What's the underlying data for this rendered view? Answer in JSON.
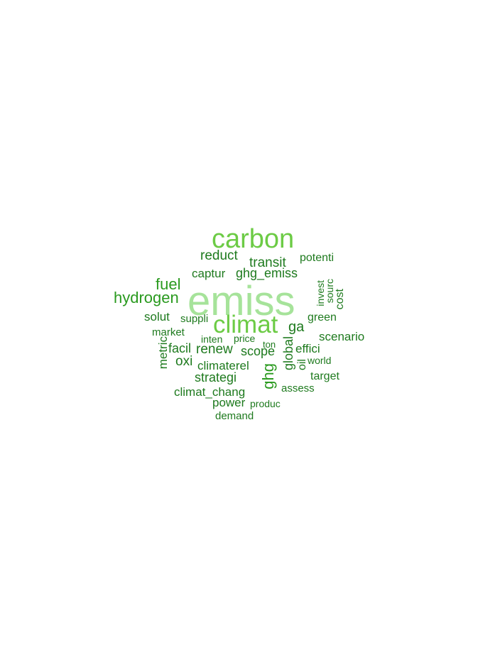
{
  "palette": {
    "lightest": "#a6e39a",
    "light": "#6ccb45",
    "medium": "#2a9a1f",
    "dark": "#1e7a1e"
  },
  "words": [
    {
      "text": "emiss",
      "tone": "lightest"
    },
    {
      "text": "carbon",
      "tone": "light"
    },
    {
      "text": "climat",
      "tone": "light"
    },
    {
      "text": "hydrogen",
      "tone": "medium"
    },
    {
      "text": "fuel",
      "tone": "medium"
    },
    {
      "text": "ghg",
      "tone": "medium"
    },
    {
      "text": "reduct",
      "tone": "dark"
    },
    {
      "text": "transit",
      "tone": "dark"
    },
    {
      "text": "ghg_emiss",
      "tone": "dark"
    },
    {
      "text": "captur",
      "tone": "dark"
    },
    {
      "text": "potenti",
      "tone": "dark"
    },
    {
      "text": "invest",
      "tone": "dark"
    },
    {
      "text": "sourc",
      "tone": "dark"
    },
    {
      "text": "cost",
      "tone": "dark"
    },
    {
      "text": "solut",
      "tone": "dark"
    },
    {
      "text": "suppli",
      "tone": "dark"
    },
    {
      "text": "green",
      "tone": "dark"
    },
    {
      "text": "ga",
      "tone": "dark"
    },
    {
      "text": "market",
      "tone": "dark"
    },
    {
      "text": "inten",
      "tone": "dark"
    },
    {
      "text": "price",
      "tone": "dark"
    },
    {
      "text": "ton",
      "tone": "dark"
    },
    {
      "text": "scenario",
      "tone": "dark"
    },
    {
      "text": "metric",
      "tone": "dark"
    },
    {
      "text": "facil",
      "tone": "dark"
    },
    {
      "text": "renew",
      "tone": "dark"
    },
    {
      "text": "scope",
      "tone": "dark"
    },
    {
      "text": "global",
      "tone": "dark"
    },
    {
      "text": "effici",
      "tone": "dark"
    },
    {
      "text": "oxi",
      "tone": "dark"
    },
    {
      "text": "climaterel",
      "tone": "dark"
    },
    {
      "text": "oil",
      "tone": "dark"
    },
    {
      "text": "world",
      "tone": "dark"
    },
    {
      "text": "strategi",
      "tone": "dark"
    },
    {
      "text": "target",
      "tone": "dark"
    },
    {
      "text": "climat_chang",
      "tone": "dark"
    },
    {
      "text": "assess",
      "tone": "dark"
    },
    {
      "text": "power",
      "tone": "dark"
    },
    {
      "text": "produc",
      "tone": "dark"
    },
    {
      "text": "demand",
      "tone": "dark"
    }
  ]
}
